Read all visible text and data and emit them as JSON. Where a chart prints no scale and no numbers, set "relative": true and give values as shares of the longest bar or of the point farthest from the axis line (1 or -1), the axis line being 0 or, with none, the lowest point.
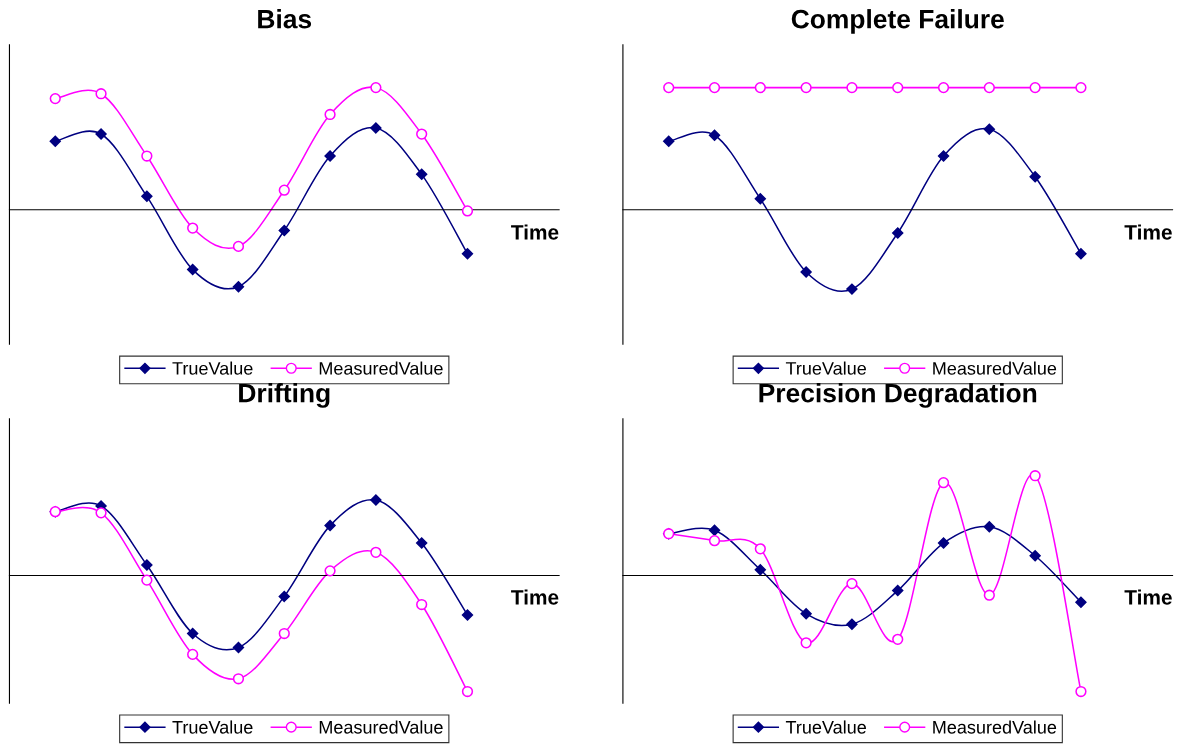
{
  "chart_data": [
    {
      "type": "line",
      "title": "Bias",
      "xlabel": "Time",
      "relative": true,
      "legend": "bottom",
      "grid": false,
      "categories": [
        null,
        null,
        null,
        null,
        null,
        null,
        null,
        null,
        null,
        null
      ],
      "series": [
        {
          "name": "TrueValue",
          "color": "#000080",
          "marker": "diamond",
          "values": [
            0.56,
            0.62,
            0.11,
            -0.49,
            -0.63,
            -0.17,
            0.44,
            0.67,
            0.29,
            -0.36
          ]
        },
        {
          "name": "MeasuredValue",
          "color": "#ff00ff",
          "marker": "circle",
          "values": [
            0.91,
            0.95,
            0.44,
            -0.15,
            -0.3,
            0.16,
            0.78,
            1,
            0.62,
            -0.01
          ]
        }
      ]
    },
    {
      "type": "line",
      "title": "Complete Failure",
      "xlabel": "Time",
      "relative": true,
      "legend": "bottom",
      "grid": false,
      "categories": [
        null,
        null,
        null,
        null,
        null,
        null,
        null,
        null,
        null,
        null
      ],
      "series": [
        {
          "name": "TrueValue",
          "color": "#000080",
          "marker": "diamond",
          "values": [
            0.56,
            0.61,
            0.09,
            -0.51,
            -0.65,
            -0.19,
            0.44,
            0.66,
            0.27,
            -0.36
          ]
        },
        {
          "name": "MeasuredValue",
          "color": "#ff00ff",
          "marker": "circle",
          "values": [
            1,
            1,
            1,
            1,
            1,
            1,
            1,
            1,
            1,
            1
          ]
        }
      ]
    },
    {
      "type": "line",
      "title": "Drifting",
      "xlabel": "Time",
      "relative": true,
      "legend": "bottom",
      "grid": false,
      "categories": [
        null,
        null,
        null,
        null,
        null,
        null,
        null,
        null,
        null,
        null
      ],
      "series": [
        {
          "name": "TrueValue",
          "color": "#000080",
          "marker": "diamond",
          "values": [
            0.55,
            0.6,
            0.09,
            -0.5,
            -0.62,
            -0.18,
            0.43,
            0.65,
            0.28,
            -0.34
          ]
        },
        {
          "name": "MeasuredValue",
          "color": "#ff00ff",
          "marker": "circle",
          "values": [
            0.55,
            0.54,
            -0.04,
            -0.68,
            -0.89,
            -0.5,
            0.04,
            0.2,
            -0.25,
            -1
          ]
        }
      ]
    },
    {
      "type": "line",
      "title": "Precision Degradation",
      "xlabel": "Time",
      "relative": true,
      "legend": "bottom",
      "grid": false,
      "categories": [
        null,
        null,
        null,
        null,
        null,
        null,
        null,
        null,
        null,
        null
      ],
      "series": [
        {
          "name": "TrueValue",
          "color": "#000080",
          "marker": "diamond",
          "values": [
            0.36,
            0.39,
            0.05,
            -0.33,
            -0.42,
            -0.13,
            0.28,
            0.42,
            0.17,
            -0.23
          ]
        },
        {
          "name": "MeasuredValue",
          "color": "#ff00ff",
          "marker": "circle",
          "values": [
            0.36,
            0.3,
            0.23,
            -0.58,
            -0.07,
            -0.55,
            0.8,
            -0.17,
            0.86,
            -1
          ]
        }
      ]
    }
  ]
}
